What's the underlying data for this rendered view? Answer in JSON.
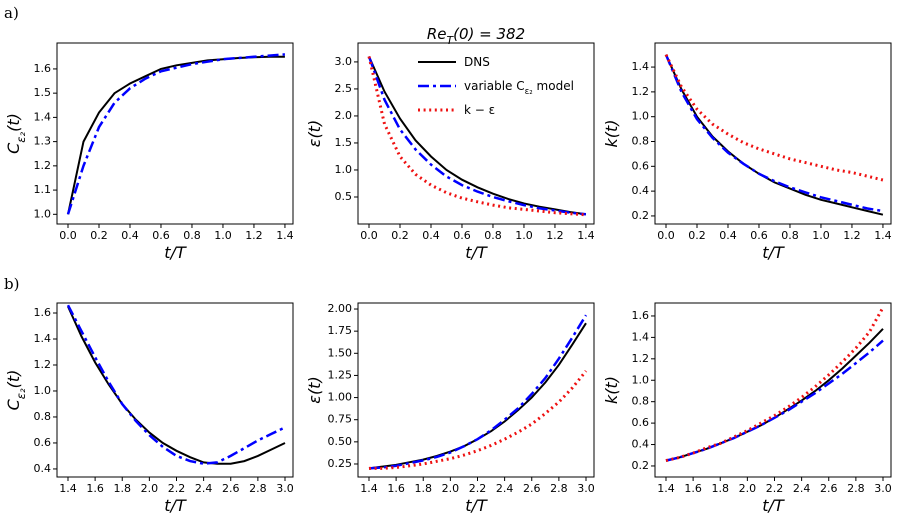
{
  "panel_labels": [
    "a)",
    "b)"
  ],
  "chart_data": [
    {
      "type": "line",
      "x": [
        0,
        0.1,
        0.2,
        0.3,
        0.4,
        0.5,
        0.6,
        0.7,
        0.8,
        0.9,
        1.0,
        1.1,
        1.2,
        1.3,
        1.4
      ],
      "xlim": [
        -0.071,
        1.452
      ],
      "xticks": [
        {
          "value": 0,
          "label": "0.0"
        },
        0.2,
        0.4,
        0.6,
        0.8,
        {
          "value": 1,
          "label": "1.0"
        },
        1.2,
        1.4
      ],
      "ylim": [
        0.96,
        1.707
      ],
      "yticks": [
        {
          "value": 1,
          "label": "1.0"
        },
        1.1,
        1.2,
        1.3,
        1.4,
        1.5,
        1.6
      ],
      "xlabel": "t/T",
      "ylabel": "C_{ε₂}(t)",
      "series": [
        {
          "color": "#000000",
          "dash": "solid",
          "values": [
            1.0,
            1.3,
            1.42,
            1.5,
            1.54,
            1.57,
            1.6,
            1.615,
            1.625,
            1.635,
            1.64,
            1.645,
            1.648,
            1.65,
            1.65
          ]
        },
        {
          "color": "#0000ff",
          "dash": "dashdot",
          "values": [
            1.0,
            1.2,
            1.36,
            1.46,
            1.52,
            1.56,
            1.59,
            1.605,
            1.62,
            1.63,
            1.64,
            1.645,
            1.65,
            1.655,
            1.66
          ]
        }
      ]
    },
    {
      "type": "line",
      "title": "Re_{T}(0) = 382",
      "x": [
        0,
        0.1,
        0.2,
        0.3,
        0.4,
        0.5,
        0.6,
        0.7,
        0.8,
        0.9,
        1.0,
        1.1,
        1.2,
        1.3,
        1.4
      ],
      "xlim": [
        -0.071,
        1.452
      ],
      "xticks": [
        {
          "value": 0,
          "label": "0.0"
        },
        0.2,
        0.4,
        0.6,
        0.8,
        {
          "value": 1,
          "label": "1.0"
        },
        1.2,
        1.4
      ],
      "ylim": [
        0.0,
        3.35
      ],
      "yticks": [
        0.5,
        {
          "value": 1,
          "label": "1.0"
        },
        1.5,
        {
          "value": 2,
          "label": "2.0"
        },
        2.5,
        {
          "value": 3,
          "label": "3.0"
        }
      ],
      "xlabel": "t/T",
      "ylabel": "ε(t)",
      "legend": "upper right",
      "series": [
        {
          "name": "DNS",
          "color": "#000000",
          "dash": "solid",
          "values": [
            3.1,
            2.45,
            1.95,
            1.55,
            1.25,
            1.0,
            0.82,
            0.68,
            0.56,
            0.46,
            0.38,
            0.32,
            0.27,
            0.22,
            0.18
          ]
        },
        {
          "name": "variable C_{ε₂} model",
          "color": "#0000ff",
          "dash": "dashdot",
          "values": [
            3.1,
            2.3,
            1.75,
            1.38,
            1.1,
            0.88,
            0.72,
            0.6,
            0.5,
            0.42,
            0.35,
            0.29,
            0.25,
            0.21,
            0.18
          ]
        },
        {
          "name": "k − ε",
          "color": "#ee1111",
          "dash": "dotted",
          "values": [
            3.1,
            1.85,
            1.25,
            0.92,
            0.72,
            0.58,
            0.48,
            0.41,
            0.35,
            0.3,
            0.27,
            0.24,
            0.21,
            0.19,
            0.17
          ]
        }
      ]
    },
    {
      "type": "line",
      "x": [
        0,
        0.1,
        0.2,
        0.3,
        0.4,
        0.5,
        0.6,
        0.7,
        0.8,
        0.9,
        1.0,
        1.1,
        1.2,
        1.3,
        1.4
      ],
      "xlim": [
        -0.071,
        1.452
      ],
      "xticks": [
        {
          "value": 0,
          "label": "0.0"
        },
        0.2,
        0.4,
        0.6,
        0.8,
        {
          "value": 1,
          "label": "1.0"
        },
        1.2,
        1.4
      ],
      "ylim": [
        0.135,
        1.594
      ],
      "yticks": [
        0.2,
        0.4,
        0.6,
        0.8,
        {
          "value": 1,
          "label": "1.0"
        },
        1.2,
        1.4
      ],
      "xlabel": "t/T",
      "ylabel": "k(t)",
      "series": [
        {
          "color": "#000000",
          "dash": "solid",
          "values": [
            1.5,
            1.22,
            1.0,
            0.84,
            0.72,
            0.62,
            0.54,
            0.47,
            0.42,
            0.37,
            0.33,
            0.3,
            0.27,
            0.24,
            0.21
          ]
        },
        {
          "color": "#0000ff",
          "dash": "dashdot",
          "values": [
            1.5,
            1.2,
            0.98,
            0.83,
            0.71,
            0.62,
            0.54,
            0.48,
            0.43,
            0.39,
            0.35,
            0.32,
            0.29,
            0.26,
            0.24
          ]
        },
        {
          "color": "#ee1111",
          "dash": "dotted",
          "values": [
            1.5,
            1.24,
            1.06,
            0.94,
            0.86,
            0.79,
            0.74,
            0.7,
            0.66,
            0.63,
            0.6,
            0.57,
            0.55,
            0.52,
            0.49
          ]
        }
      ]
    },
    {
      "type": "line",
      "x": [
        1.4,
        1.5,
        1.6,
        1.7,
        1.8,
        1.9,
        2.0,
        2.1,
        2.2,
        2.3,
        2.4,
        2.5,
        2.6,
        2.7,
        2.8,
        2.9,
        3.0
      ],
      "xlim": [
        1.319,
        3.059
      ],
      "xticks": [
        1.4,
        1.6,
        1.8,
        {
          "value": 2,
          "label": "2.0"
        },
        2.2,
        2.4,
        2.6,
        2.8,
        {
          "value": 3,
          "label": "3.0"
        }
      ],
      "ylim": [
        0.338,
        1.677
      ],
      "yticks": [
        0.4,
        0.6,
        0.8,
        {
          "value": 1,
          "label": "1.0"
        },
        1.2,
        1.4,
        1.6
      ],
      "xlabel": "t/T",
      "ylabel": "C_{ε₂}(t)",
      "series": [
        {
          "color": "#000000",
          "dash": "solid",
          "values": [
            1.65,
            1.42,
            1.22,
            1.05,
            0.9,
            0.78,
            0.68,
            0.6,
            0.54,
            0.49,
            0.45,
            0.44,
            0.44,
            0.46,
            0.5,
            0.55,
            0.6
          ]
        },
        {
          "color": "#0000ff",
          "dash": "dashdot",
          "values": [
            1.66,
            1.46,
            1.26,
            1.07,
            0.9,
            0.77,
            0.66,
            0.57,
            0.5,
            0.46,
            0.44,
            0.45,
            0.5,
            0.56,
            0.62,
            0.67,
            0.72
          ]
        }
      ]
    },
    {
      "type": "line",
      "x": [
        1.4,
        1.5,
        1.6,
        1.7,
        1.8,
        1.9,
        2.0,
        2.1,
        2.2,
        2.3,
        2.4,
        2.5,
        2.6,
        2.7,
        2.8,
        2.9,
        3.0
      ],
      "xlim": [
        1.319,
        3.059
      ],
      "xticks": [
        1.4,
        1.6,
        1.8,
        {
          "value": 2,
          "label": "2.0"
        },
        2.2,
        2.4,
        2.6,
        2.8,
        {
          "value": 3,
          "label": "3.0"
        }
      ],
      "ylim": [
        0.103,
        2.068
      ],
      "yticks": [
        0.25,
        {
          "value": 0.5,
          "label": "0.50"
        },
        0.75,
        {
          "value": 1,
          "label": "1.00"
        },
        1.25,
        {
          "value": 1.5,
          "label": "1.50"
        },
        1.75,
        {
          "value": 2,
          "label": "2.00"
        }
      ],
      "xlabel": "t/T",
      "ylabel": "ε(t)",
      "series": [
        {
          "color": "#000000",
          "dash": "solid",
          "values": [
            0.2,
            0.22,
            0.24,
            0.27,
            0.3,
            0.34,
            0.39,
            0.45,
            0.53,
            0.62,
            0.73,
            0.86,
            1.0,
            1.17,
            1.37,
            1.6,
            1.84
          ]
        },
        {
          "color": "#0000ff",
          "dash": "dashdot",
          "values": [
            0.2,
            0.21,
            0.23,
            0.26,
            0.29,
            0.33,
            0.38,
            0.45,
            0.53,
            0.63,
            0.75,
            0.88,
            1.04,
            1.22,
            1.44,
            1.68,
            1.93
          ]
        },
        {
          "color": "#ee1111",
          "dash": "dotted",
          "values": [
            0.2,
            0.2,
            0.21,
            0.23,
            0.25,
            0.28,
            0.31,
            0.35,
            0.4,
            0.46,
            0.53,
            0.61,
            0.7,
            0.82,
            0.95,
            1.11,
            1.3
          ]
        }
      ]
    },
    {
      "type": "line",
      "x": [
        1.4,
        1.5,
        1.6,
        1.7,
        1.8,
        1.9,
        2.0,
        2.1,
        2.2,
        2.3,
        2.4,
        2.5,
        2.6,
        2.7,
        2.8,
        2.9,
        3.0
      ],
      "xlim": [
        1.319,
        3.059
      ],
      "xticks": [
        1.4,
        1.6,
        1.8,
        {
          "value": 2,
          "label": "2.0"
        },
        2.2,
        2.4,
        2.6,
        2.8,
        {
          "value": 3,
          "label": "3.0"
        }
      ],
      "ylim": [
        0.097,
        1.721
      ],
      "yticks": [
        0.2,
        0.4,
        0.6,
        0.8,
        {
          "value": 1,
          "label": "1.0"
        },
        1.2,
        1.4,
        1.6
      ],
      "xlabel": "t/T",
      "ylabel": "k(t)",
      "series": [
        {
          "color": "#000000",
          "dash": "solid",
          "values": [
            0.25,
            0.28,
            0.32,
            0.36,
            0.41,
            0.46,
            0.52,
            0.58,
            0.65,
            0.73,
            0.81,
            0.9,
            1.0,
            1.11,
            1.23,
            1.35,
            1.48
          ]
        },
        {
          "color": "#0000ff",
          "dash": "dashdot",
          "values": [
            0.25,
            0.28,
            0.32,
            0.36,
            0.41,
            0.46,
            0.52,
            0.58,
            0.65,
            0.72,
            0.8,
            0.88,
            0.97,
            1.06,
            1.16,
            1.26,
            1.37
          ]
        },
        {
          "color": "#ee1111",
          "dash": "dotted",
          "values": [
            0.25,
            0.28,
            0.32,
            0.37,
            0.41,
            0.47,
            0.53,
            0.6,
            0.67,
            0.75,
            0.84,
            0.94,
            1.05,
            1.17,
            1.3,
            1.45,
            1.68
          ]
        }
      ]
    }
  ]
}
